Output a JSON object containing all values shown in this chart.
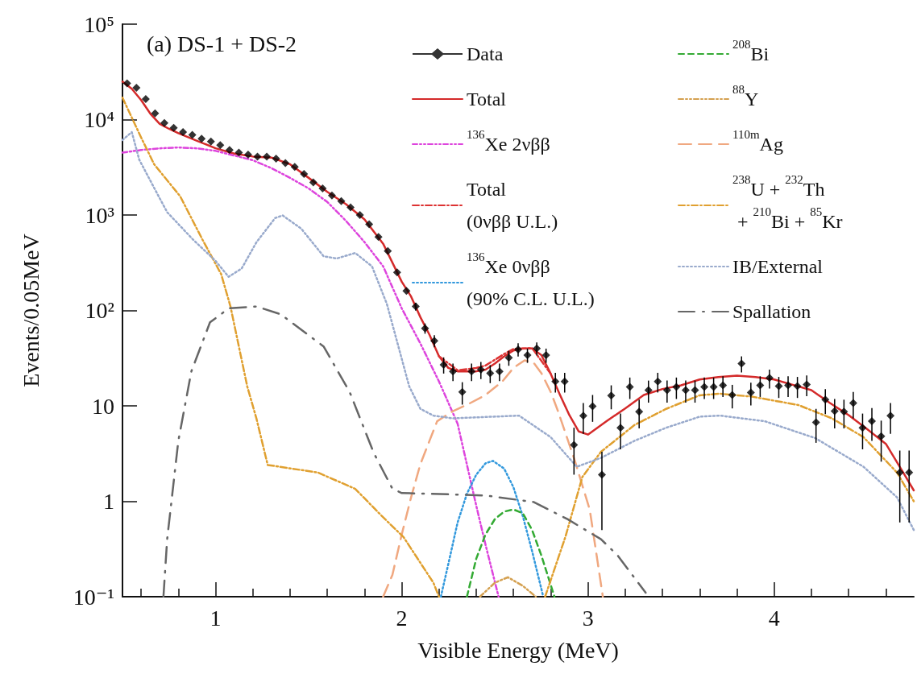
{
  "chart_data": {
    "type": "line",
    "xlabel": "Visible Energy (MeV)",
    "ylabel": "Events/0.05MeV",
    "annotations": [
      "(a) DS-1 + DS-2"
    ],
    "xlim": [
      0.5,
      4.75
    ],
    "xticks": [
      1,
      2,
      3,
      4
    ],
    "ylim": [
      0.1,
      100000
    ],
    "log": "y",
    "yticks": [
      {
        "value": 0.1,
        "label": "10⁻¹"
      },
      1,
      10,
      {
        "value": 100,
        "label": "10²"
      },
      {
        "value": 1000,
        "label": "10³"
      },
      {
        "value": 10000,
        "label": "10⁴"
      },
      {
        "value": 100000,
        "label": "10⁵"
      }
    ],
    "grid": false,
    "legend": "top right",
    "series": [
      {
        "name": "Data",
        "type": "scatter",
        "color": "#000000",
        "marker": "diamond",
        "x": [
          0.525,
          0.575,
          0.625,
          0.675,
          0.725,
          0.775,
          0.825,
          0.875,
          0.925,
          0.975,
          1.025,
          1.075,
          1.125,
          1.175,
          1.225,
          1.275,
          1.325,
          1.375,
          1.425,
          1.475,
          1.525,
          1.575,
          1.625,
          1.675,
          1.725,
          1.775,
          1.825,
          1.875,
          1.925,
          1.975,
          2.025,
          2.075,
          2.125,
          2.175,
          2.225,
          2.275,
          2.325,
          2.375,
          2.425,
          2.475,
          2.525,
          2.575,
          2.625,
          2.675,
          2.725,
          2.775,
          2.825,
          2.875,
          2.925,
          2.975,
          3.025,
          3.075,
          3.125,
          3.175,
          3.225,
          3.275,
          3.325,
          3.375,
          3.425,
          3.475,
          3.525,
          3.575,
          3.625,
          3.675,
          3.725,
          3.775,
          3.825,
          3.875,
          3.925,
          3.975,
          4.025,
          4.075,
          4.125,
          4.175,
          4.225,
          4.275,
          4.325,
          4.375,
          4.425,
          4.475,
          4.525,
          4.575,
          4.625,
          4.675,
          4.725
        ],
        "values": [
          24000,
          21500,
          16400,
          11600,
          9200,
          8200,
          7400,
          6900,
          6300,
          5900,
          5400,
          4800,
          4500,
          4300,
          4100,
          4100,
          3900,
          3500,
          3200,
          2700,
          2200,
          1900,
          1600,
          1400,
          1200,
          1000,
          800,
          590,
          420,
          250,
          160,
          110,
          65,
          48,
          27,
          23,
          14,
          23,
          24,
          22,
          23,
          32,
          39,
          34,
          40,
          34,
          18,
          18,
          3.9,
          7.9,
          9.9,
          1.9,
          12.8,
          5.9,
          15.8,
          8.7,
          14.6,
          18,
          14.6,
          15.8,
          14.6,
          14.6,
          15.8,
          15.8,
          16.4,
          13,
          27.7,
          13.8,
          16.4,
          19.6,
          16.1,
          16.4,
          16.1,
          16.7,
          6.7,
          11.6,
          8.8,
          8.7,
          10.7,
          5.9,
          6.9,
          4.8,
          7.9,
          2.0,
          2.0
        ],
        "errors": [
          null,
          null,
          null,
          null,
          null,
          null,
          null,
          null,
          null,
          null,
          null,
          null,
          null,
          null,
          null,
          null,
          null,
          null,
          null,
          null,
          null,
          null,
          null,
          null,
          null,
          null,
          null,
          null,
          null,
          null,
          null,
          10.5,
          8,
          6.9,
          5.2,
          4.8,
          3.7,
          4.8,
          4.9,
          4.7,
          4.8,
          5.7,
          6.2,
          5.8,
          6.3,
          5.8,
          4.2,
          4.2,
          2,
          2.8,
          3.1,
          1.4,
          3.6,
          2.4,
          4,
          2.9,
          3.8,
          4.2,
          3.8,
          4,
          3.8,
          3.8,
          4,
          4,
          4,
          3.6,
          5.3,
          3.7,
          4,
          4.4,
          4,
          4,
          4,
          4.1,
          2.6,
          3.4,
          3,
          2.9,
          3.3,
          2.4,
          2.6,
          2.2,
          2.8,
          1.4,
          1.4
        ]
      },
      {
        "name": "Total",
        "color": "#d42a2a",
        "line_style": "solid",
        "x": [
          0.5,
          0.55,
          0.6,
          0.65,
          0.7,
          0.75,
          0.8,
          0.9,
          1.0,
          1.1,
          1.2,
          1.3,
          1.4,
          1.5,
          1.6,
          1.7,
          1.8,
          1.9,
          2.0,
          2.05,
          2.1,
          2.15,
          2.2,
          2.25,
          2.3,
          2.4,
          2.45,
          2.5,
          2.55,
          2.6,
          2.65,
          2.7,
          2.75,
          2.8,
          2.85,
          2.9,
          2.95,
          3.0,
          3.1,
          3.2,
          3.3,
          3.4,
          3.5,
          3.6,
          3.7,
          3.8,
          3.9,
          4.0,
          4.1,
          4.2,
          4.3,
          4.4,
          4.5,
          4.6,
          4.7,
          4.75
        ],
        "values": [
          25000,
          21000,
          16000,
          11500,
          9000,
          8000,
          7200,
          6000,
          5000,
          4400,
          4100,
          4000,
          3400,
          2450,
          1750,
          1300,
          900,
          500,
          200,
          140,
          85,
          55,
          33,
          25,
          23,
          23,
          24,
          27.7,
          33,
          38,
          40,
          40,
          34,
          21.7,
          13,
          8,
          5.4,
          5,
          6.9,
          9.4,
          13,
          15,
          16.4,
          18.9,
          20,
          20.7,
          20,
          18.9,
          16.6,
          14.6,
          10.7,
          8,
          5.7,
          4,
          1.9,
          1.3
        ]
      },
      {
        "name": "$^{136}$Xe 2νββ",
        "color": "#dd44dd",
        "line_style": "dashdotdot",
        "x": [
          0.5,
          0.6,
          0.7,
          0.8,
          0.9,
          1.0,
          1.1,
          1.2,
          1.3,
          1.4,
          1.5,
          1.6,
          1.7,
          1.8,
          1.9,
          2.0,
          2.1,
          2.2,
          2.3,
          2.4,
          2.45,
          2.52
        ],
        "values": [
          4500,
          4800,
          5000,
          5100,
          5000,
          4700,
          4200,
          3750,
          3100,
          2450,
          1900,
          1370,
          870,
          520,
          290,
          105,
          45,
          18,
          6.5,
          0.9,
          0.35,
          0.1
        ]
      },
      {
        "name": "Total\n(0νββ U.L.)",
        "color": "#dd3333",
        "line_style": "dashdot",
        "x": [
          2.2,
          2.3,
          2.4,
          2.45,
          2.5,
          2.55,
          2.6,
          2.7,
          2.8
        ],
        "values": [
          33.1,
          23.6,
          24.9,
          26.5,
          30.4,
          35,
          39.4,
          40.3,
          21.7
        ]
      },
      {
        "name": "$^{136}$Xe 0νββ\n(90% C.L. U.L.)",
        "color": "#3399dd",
        "line_style": "dotted",
        "x": [
          2.21,
          2.25,
          2.3,
          2.35,
          2.4,
          2.45,
          2.49,
          2.55,
          2.6,
          2.65,
          2.7,
          2.76
        ],
        "values": [
          0.1,
          0.22,
          0.6,
          1.2,
          1.9,
          2.5,
          2.65,
          2.2,
          1.4,
          0.7,
          0.3,
          0.1
        ]
      },
      {
        "name": "$^{208}$Bi",
        "color": "#33aa33",
        "line_style": "dashed",
        "x": [
          2.35,
          2.4,
          2.45,
          2.5,
          2.55,
          2.6,
          2.65,
          2.7,
          2.75,
          2.82
        ],
        "values": [
          0.1,
          0.25,
          0.45,
          0.65,
          0.78,
          0.82,
          0.75,
          0.5,
          0.27,
          0.1
        ]
      },
      {
        "name": "$^{88}$Y",
        "color": "#d4a050",
        "line_style": "dashdotdot",
        "x": [
          2.42,
          2.5,
          2.57,
          2.65,
          2.72
        ],
        "values": [
          0.1,
          0.14,
          0.16,
          0.13,
          0.1
        ]
      },
      {
        "name": "$^{110m}$Ag",
        "color": "#f0a880",
        "line_style": "longdash",
        "x": [
          1.9,
          1.95,
          2.0,
          2.05,
          2.1,
          2.19,
          2.27,
          2.36,
          2.45,
          2.54,
          2.6,
          2.66,
          2.71,
          2.75,
          2.8,
          2.84,
          2.93,
          3.01,
          3.08
        ],
        "values": [
          0.1,
          0.17,
          0.45,
          1.1,
          2.45,
          6.9,
          8.7,
          10.5,
          13,
          18,
          25,
          30,
          28,
          22,
          14,
          8.7,
          2.65,
          0.81,
          0.1
        ]
      },
      {
        "name": "$^{238}$U + $^{232}$Th\n + $^{210}$Bi + $^{85}$Kr",
        "color": "#e0a030",
        "line_style": "dashdot",
        "x": [
          0.5,
          0.6,
          0.67,
          0.81,
          0.93,
          1.03,
          1.08,
          1.17,
          1.22,
          1.28,
          1.55,
          1.75,
          1.89,
          2.01,
          2.17,
          2.2,
          2.5,
          2.77,
          2.88,
          2.97,
          3.07,
          3.25,
          3.42,
          3.6,
          3.71,
          3.88,
          4.13,
          4.31,
          4.48,
          4.66,
          4.75
        ],
        "values": [
          17000,
          6500,
          3400,
          1570,
          550,
          240,
          110,
          16,
          7.3,
          2.4,
          2.0,
          1.35,
          0.71,
          0.42,
          0.14,
          0.1,
          null,
          0.1,
          0.43,
          1.8,
          3.3,
          6.3,
          9.3,
          12.9,
          13.4,
          12.5,
          10.2,
          7.4,
          4.7,
          2.0,
          1.0
        ]
      },
      {
        "name": "IB/External",
        "color": "#99aacc",
        "line_style": "dotted",
        "x": [
          0.5,
          0.55,
          0.59,
          0.68,
          0.74,
          0.88,
          1.0,
          1.07,
          1.14,
          1.22,
          1.32,
          1.36,
          1.46,
          1.58,
          1.65,
          1.75,
          1.84,
          1.92,
          2.04,
          2.1,
          2.17,
          2.27,
          2.63,
          2.8,
          2.94,
          3.07,
          3.25,
          3.42,
          3.6,
          3.71,
          3.95,
          4.22,
          4.48,
          4.66,
          4.75
        ],
        "values": [
          6100,
          7400,
          3800,
          1770,
          1070,
          550,
          330,
          225,
          275,
          520,
          930,
          990,
          720,
          370,
          350,
          400,
          290,
          117,
          16,
          9.3,
          7.9,
          7.4,
          7.9,
          4.7,
          2.3,
          2.85,
          4.3,
          5.9,
          7.7,
          7.9,
          6.9,
          4.6,
          2.3,
          1.1,
          0.5
        ]
      },
      {
        "name": "Spallation",
        "color": "#666666",
        "line_style": "longdashdot",
        "x": [
          0.72,
          0.74,
          0.8,
          0.87,
          0.97,
          1.07,
          1.22,
          1.35,
          1.58,
          1.72,
          1.85,
          1.95,
          2.0,
          2.15,
          2.45,
          2.63,
          2.71,
          2.89,
          3.07,
          3.16,
          3.31
        ],
        "values": [
          0.1,
          0.4,
          4.3,
          23,
          75,
          105,
          110,
          91,
          42,
          14,
          3.2,
          1.35,
          1.22,
          1.2,
          1.15,
          1.03,
          0.98,
          0.65,
          0.4,
          0.27,
          0.11
        ]
      }
    ]
  }
}
